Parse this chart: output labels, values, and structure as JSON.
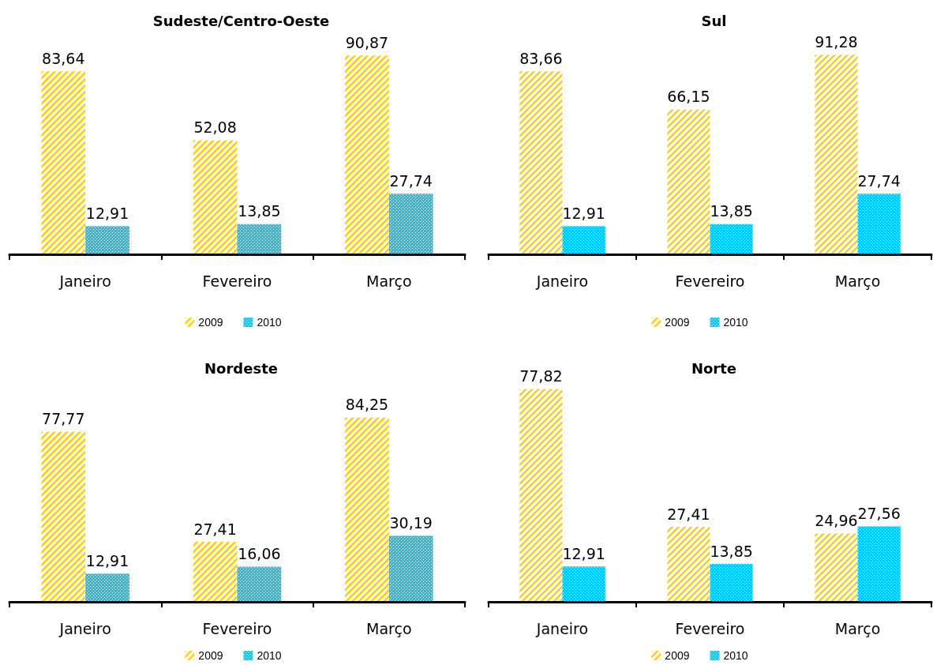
{
  "chart_data": [
    {
      "type": "bar",
      "title": "Sudeste/Centro-Oeste",
      "categories": [
        "Janeiro",
        "Fevereiro",
        "Março"
      ],
      "series": [
        {
          "name": "2009",
          "color": "#ffcc00",
          "values": [
            83.64,
            52.08,
            90.87
          ],
          "value_labels": [
            "83,64",
            "52,08",
            "90,87"
          ]
        },
        {
          "name": "2010",
          "color": "#00ccff",
          "values": [
            12.91,
            13.85,
            27.74
          ],
          "value_labels": [
            "12,91",
            "13,85",
            "27,74"
          ]
        }
      ],
      "legend": "bottom",
      "tick_labels": "x"
    },
    {
      "type": "bar",
      "title": "Sul",
      "categories": [
        "Janeiro",
        "Fevereiro",
        "Março"
      ],
      "series": [
        {
          "name": "2009",
          "color": "#ffcc00",
          "values": [
            83.66,
            66.15,
            91.28
          ],
          "value_labels": [
            "83,66",
            "66,15",
            "91,28"
          ]
        },
        {
          "name": "2010",
          "color": "#00ccff",
          "values": [
            12.91,
            13.85,
            27.74
          ],
          "value_labels": [
            "12,91",
            "13,85",
            "27,74"
          ]
        }
      ],
      "legend": "bottom",
      "tick_labels": "x"
    },
    {
      "type": "bar",
      "title": "Nordeste",
      "categories": [
        "Janeiro",
        "Fevereiro",
        "Março"
      ],
      "series": [
        {
          "name": "2009",
          "color": "#ffcc00",
          "values": [
            77.77,
            27.41,
            84.25
          ],
          "value_labels": [
            "77,77",
            "27,41",
            "84,25"
          ]
        },
        {
          "name": "2010",
          "color": "#00ccff",
          "values": [
            12.91,
            16.06,
            30.19
          ],
          "value_labels": [
            "12,91",
            "16,06",
            "30,19"
          ]
        }
      ],
      "legend": "bottom",
      "tick_labels": "x"
    },
    {
      "type": "bar",
      "title": "Norte",
      "categories": [
        "Janeiro",
        "Fevereiro",
        "Março"
      ],
      "series": [
        {
          "name": "2009",
          "color": "#ffcc00",
          "values": [
            77.82,
            27.41,
            24.96
          ],
          "value_labels": [
            "77,82",
            "27,41",
            "24,96"
          ]
        },
        {
          "name": "2010",
          "color": "#00ccff",
          "values": [
            12.91,
            13.85,
            27.56
          ],
          "value_labels": [
            "12,91",
            "13,85",
            "27,56"
          ]
        }
      ],
      "legend": "bottom",
      "tick_labels": "x"
    }
  ]
}
